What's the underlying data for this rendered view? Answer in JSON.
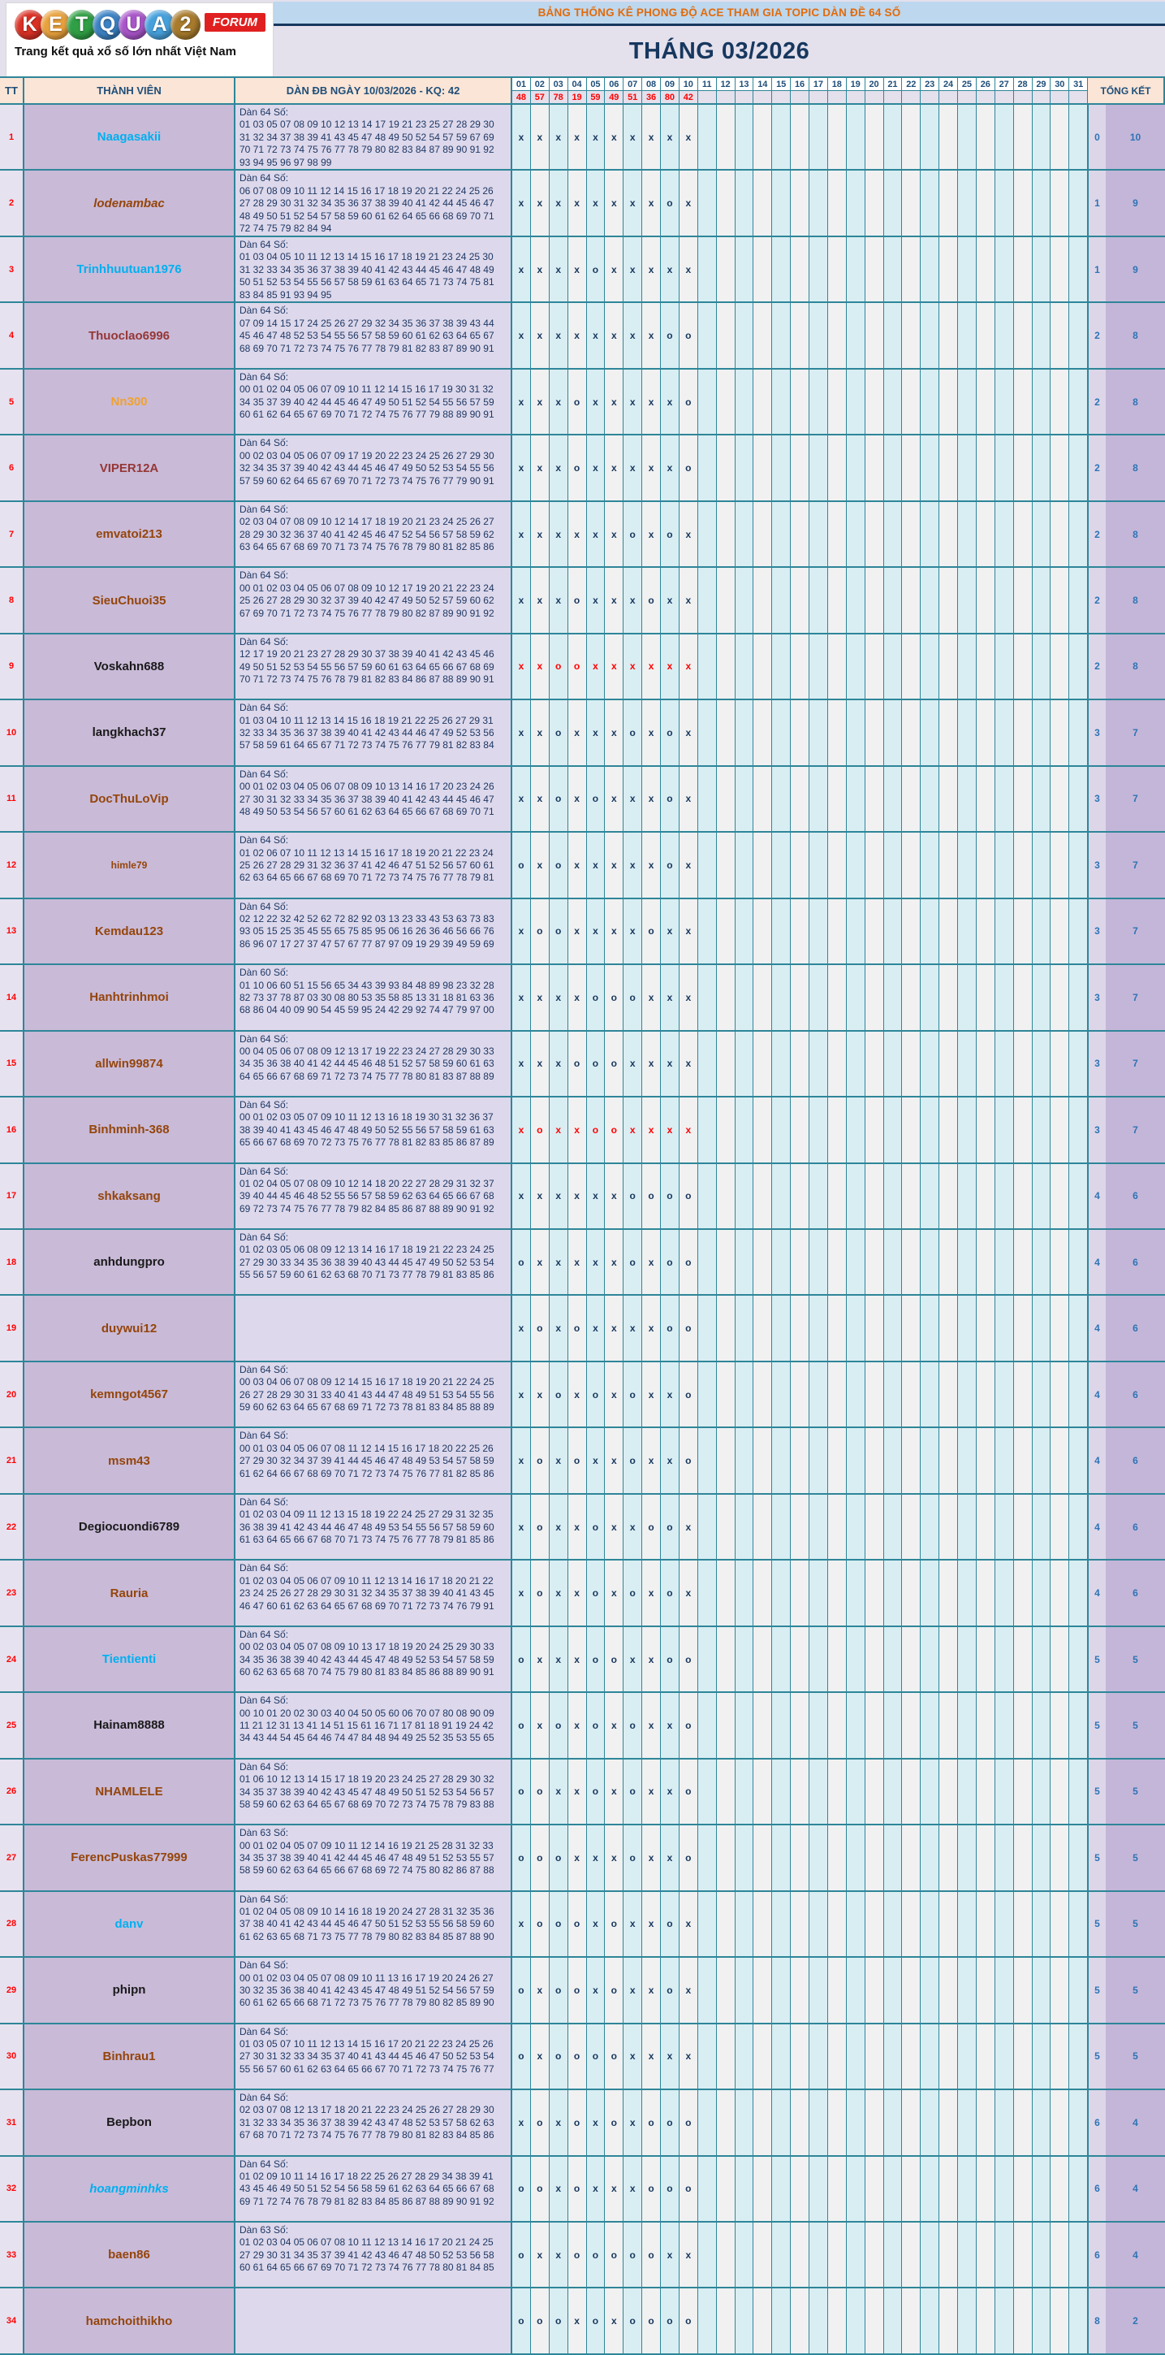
{
  "logo": {
    "balls": [
      {
        "ch": "K",
        "color": "#D93025"
      },
      {
        "ch": "E",
        "color": "#E8A13C"
      },
      {
        "ch": "T",
        "color": "#2F9E44"
      },
      {
        "ch": "Q",
        "color": "#3B82C4"
      },
      {
        "ch": "U",
        "color": "#A855C8"
      },
      {
        "ch": "A",
        "color": "#46A0DC"
      },
      {
        "ch": "2",
        "color": "#A87B2D"
      }
    ],
    "forum": "FORUM",
    "tagline": "Trang kết quả xổ số lớn nhất Việt Nam"
  },
  "banner": {
    "title": "BẢNG THỐNG KÊ PHONG ĐỘ ACE THAM GIA TOPIC DÀN ĐỀ 64 SỐ"
  },
  "month_title": "THÁNG 03/2026",
  "header": {
    "tt": "TT",
    "member": "THÀNH VIÊN",
    "dan": "DÀN ĐB NGÀY 10/03/2026 - KQ: 42",
    "tongket": "TỔNG KẾT",
    "days": [
      "01",
      "02",
      "03",
      "04",
      "05",
      "06",
      "07",
      "08",
      "09",
      "10",
      "11",
      "12",
      "13",
      "14",
      "15",
      "16",
      "17",
      "18",
      "19",
      "20",
      "21",
      "22",
      "23",
      "24",
      "25",
      "26",
      "27",
      "28",
      "29",
      "30",
      "31"
    ],
    "results": [
      "48",
      "57",
      "78",
      "19",
      "59",
      "49",
      "51",
      "36",
      "80",
      "42"
    ]
  },
  "colors": {
    "cyan": "#00B0F0",
    "brown": "#94450B",
    "maroon": "#953735",
    "black": "#1A1A1A",
    "orange": "#F0A22E",
    "border": "#2E8699",
    "mark": "#17375E",
    "mark_red": "#FF0000",
    "total": "#2E74B5"
  },
  "rows": [
    {
      "tt": "1",
      "name": "Naagasakii",
      "color": "cyan",
      "dan_title": "Dàn 64 Số:",
      "lines": [
        "01 03 05 07 08 09 10 12 13 14 17 19 21 23 25 27 28 29 30",
        "31 32 34 37 38 39 41 43 45 47 48 49 50 52 54 57 59 67 69",
        "70 71 72 73 74 75 76 77 78 79 80 82 83 84 87 89 90 91 92",
        "93 94 95 96 97 98 99"
      ],
      "marks": "xxxxxxxxxx",
      "red": false,
      "miss": "0",
      "win": "10"
    },
    {
      "tt": "2",
      "name": "lodenambac",
      "color": "brown",
      "italic": true,
      "dan_title": "Dàn 64 Số:",
      "lines": [
        "06 07 08 09 10 11 12 14 15 16 17 18 19 20 21 22 24 25 26",
        "27 28 29 30 31 32 34 35 36 37 38 39 40 41 42 44 45 46 47",
        "48 49 50 51 52 54 57 58 59 60 61 62 64 65 66 68 69 70 71",
        "72 74 75 79 82 84 94"
      ],
      "marks": "xxxxxxxxox",
      "red": false,
      "miss": "1",
      "win": "9"
    },
    {
      "tt": "3",
      "name": "Trinhhuutuan1976",
      "color": "cyan",
      "dan_title": "Dàn 64 Số:",
      "lines": [
        "01 03 04 05 10 11 12 13 14 15 16 17 18 19 21 23 24 25 30",
        "31 32 33 34 35 36 37 38 39 40 41 42 43 44 45 46 47 48 49",
        "50 51 52 53 54 55 56 57 58 59 61 63 64 65 71 73 74 75 81",
        "83 84 85 91 93 94 95"
      ],
      "marks": "xxxxoxxxxx",
      "red": false,
      "miss": "1",
      "win": "9"
    },
    {
      "tt": "4",
      "name": "Thuoclao6996",
      "color": "maroon",
      "dan_title": "Dàn 64 Số:",
      "lines": [
        "07 09 14 15 17 24 25 26 27 29 32 34 35 36 37 38 39 43 44",
        "45 46 47 48 52 53 54 55 56 57 58 59 60 61 62 63 64 65 67",
        "68 69 70 71 72 73 74 75 76 77 78 79 81 82 83 87 89 90 91"
      ],
      "marks": "xxxxxxxxoo",
      "red": false,
      "miss": "2",
      "win": "8"
    },
    {
      "tt": "5",
      "name": "Nn300",
      "color": "orange",
      "dan_title": "Dàn 64 Số:",
      "lines": [
        "00 01 02 04 05 06 07 09 10 11 12 14 15 16 17 19 30 31 32",
        "34 35 37 39 40 42 44 45 46 47 49 50 51 52 54 55 56 57 59",
        "60 61 62 64 65 67 69 70 71 72 74 75 76 77 79 88 89 90 91"
      ],
      "marks": "xxxoxxxxxo",
      "red": false,
      "miss": "2",
      "win": "8"
    },
    {
      "tt": "6",
      "name": "VIPER12A",
      "color": "maroon",
      "dan_title": "Dàn 64 Số:",
      "lines": [
        "00 02 03 04 05 06 07 09 17 19 20 22 23 24 25 26 27 29 30",
        "32 34 35 37 39 40 42 43 44 45 46 47 49 50 52 53 54 55 56",
        "57 59 60 62 64 65 67 69 70 71 72 73 74 75 76 77 79 90 91"
      ],
      "marks": "xxxoxxxxxo",
      "red": false,
      "miss": "2",
      "win": "8"
    },
    {
      "tt": "7",
      "name": "emvatoi213",
      "color": "brown",
      "dan_title": "Dàn 64 Số:",
      "lines": [
        "02 03 04 07 08 09 10 12 14 17 18 19 20 21 23 24 25 26 27",
        "28 29 30 32 36 37 40 41 42 45 46 47 52 54 56 57 58 59 62",
        "63 64 65 67 68 69 70 71 73 74 75 76 78 79 80 81 82 85 86"
      ],
      "marks": "xxxxxxoxox",
      "red": false,
      "miss": "2",
      "win": "8"
    },
    {
      "tt": "8",
      "name": "SieuChuoi35",
      "color": "brown",
      "dan_title": "Dàn 64 Số:",
      "lines": [
        "00 01 02 03 04 05 06 07 08 09 10 12 17 19 20 21 22 23 24",
        "25 26 27 28 29 30 32 37 39 40 42 47 49 50 52 57 59 60 62",
        "67 69 70 71 72 73 74 75 76 77 78 79 80 82 87 89 90 91 92"
      ],
      "marks": "xxxoxxxoxx",
      "red": false,
      "miss": "2",
      "win": "8"
    },
    {
      "tt": "9",
      "name": "Voskahn688",
      "color": "black",
      "dan_title": "Dàn 64 Số:",
      "lines": [
        "12 17 19 20 21 23 27 28 29 30 37 38 39 40 41 42 43 45 46",
        "49 50 51 52 53 54 55 56 57 59 60 61 63 64 65 66 67 68 69",
        "70 71 72 73 74 75 76 78 79 81 82 83 84 86 87 88 89 90 91"
      ],
      "marks": "xxooxxxxxx",
      "red": true,
      "miss": "2",
      "win": "8"
    },
    {
      "tt": "10",
      "name": "langkhach37",
      "color": "black",
      "dan_title": "Dàn 64 Số:",
      "lines": [
        "01 03 04 10 11 12 13 14 15 16 18 19 21 22 25 26 27 29 31",
        "32 33 34 35 36 37 38 39 40 41 42 43 44 46 47 49 52 53 56",
        "57 58 59 61 64 65 67 71 72 73 74 75 76 77 79 81 82 83 84"
      ],
      "marks": "xxoxxxoxox",
      "red": false,
      "miss": "3",
      "win": "7"
    },
    {
      "tt": "11",
      "name": "DocThuLoVip",
      "color": "brown",
      "dan_title": "Dàn 64 Số:",
      "lines": [
        "00 01 02 03 04 05 06 07 08 09 10 13 14 16 17 20 23 24 26",
        "27 30 31 32 33 34 35 36 37 38 39 40 41 42 43 44 45 46 47",
        "48 49 50 53 54 56 57 60 61 62 63 64 65 66 67 68 69 70 71"
      ],
      "marks": "xxoxoxxxox",
      "red": false,
      "miss": "3",
      "win": "7"
    },
    {
      "tt": "12",
      "name": "himle79",
      "color": "brown",
      "small": true,
      "dan_title": "Dàn 64 Số:",
      "lines": [
        "01 02 06 07 10 11 12 13 14 15 16 17 18 19 20 21 22 23 24",
        "25 26 27 28 29 31 32 36 37 41 42 46 47 51 52 56 57 60 61",
        "62 63 64 65 66 67 68 69 70 71 72 73 74 75 76 77 78 79 81"
      ],
      "marks": "oxoxxxxxox",
      "red": false,
      "miss": "3",
      "win": "7"
    },
    {
      "tt": "13",
      "name": "Kemdau123",
      "color": "brown",
      "dan_title": "Dàn 64 Số:",
      "lines": [
        "02 12 22 32 42 52 62 72 82 92 03 13 23 33 43 53 63 73 83",
        "93 05 15 25 35 45 55 65 75 85 95 06 16 26 36 46 56 66 76",
        "86 96 07 17 27 37 47 57 67 77 87 97 09 19 29 39 49 59 69"
      ],
      "marks": "xooxxxxoxx",
      "red": false,
      "miss": "3",
      "win": "7"
    },
    {
      "tt": "14",
      "name": "Hanhtrinhmoi",
      "color": "brown",
      "dan_title": "Dàn 60 Số:",
      "lines": [
        "01 10 06 60 51 15 56 65 34 43 39 93 84 48 89 98 23 32 28",
        "82 73 37 78 87 03 30 08 80 53 35 58 85 13 31 18 81 63 36",
        "68 86 04 40 09 90 54 45 59 95 24 42 29 92 74 47 79 97 00"
      ],
      "marks": "xxxxoooxxx",
      "red": false,
      "miss": "3",
      "win": "7"
    },
    {
      "tt": "15",
      "name": "allwin99874",
      "color": "brown",
      "dan_title": "Dàn 64 Số:",
      "lines": [
        "00 04 05 06 07 08 09 12 13 17 19 22 23 24 27 28 29 30 33",
        "34 35 36 38 40 41 42 44 45 46 48 51 52 57 58 59 60 61 63",
        "64 65 66 67 68 69 71 72 73 74 75 77 78 80 81 83 87 88 89"
      ],
      "marks": "xxxoooxxxx",
      "red": false,
      "miss": "3",
      "win": "7"
    },
    {
      "tt": "16",
      "name": "Binhminh-368",
      "color": "brown",
      "dan_title": "Dàn 64 Số:",
      "lines": [
        "00 01 02 03 05 07 09 10 11 12 13 16 18 19 30 31 32 36 37",
        "38 39 40 41 43 45 46 47 48 49 50 52 55 56 57 58 59 61 63",
        "65 66 67 68 69 70 72 73 75 76 77 78 81 82 83 85 86 87 89"
      ],
      "marks": "xoxxooxxxx",
      "red": true,
      "miss": "3",
      "win": "7"
    },
    {
      "tt": "17",
      "name": "shkaksang",
      "color": "brown",
      "dan_title": "Dàn 64 Số:",
      "lines": [
        "01 02 04 05 07 08 09 10 12 14 18 20 22 27 28 29 31 32 37",
        "39 40 44 45 46 48 52 55 56 57 58 59 62 63 64 65 66 67 68",
        "69 72 73 74 75 76 77 78 79 82 84 85 86 87 88 89 90 91 92"
      ],
      "marks": "xxxxxxoooo",
      "red": false,
      "miss": "4",
      "win": "6"
    },
    {
      "tt": "18",
      "name": "anhdungpro",
      "color": "black",
      "dan_title": "Dàn 64 Số:",
      "lines": [
        "01 02 03 05 06 08 09 12 13 14 16 17 18 19 21 22 23 24 25",
        "27 29 30 33 34 35 36 38 39 40 43 44 45 47 49 50 52 53 54",
        "55 56 57 59 60 61 62 63 68 70 71 73 77 78 79 81 83 85 86"
      ],
      "marks": "oxxxxxoxoo",
      "red": false,
      "miss": "4",
      "win": "6"
    },
    {
      "tt": "19",
      "name": "duywui12",
      "color": "brown",
      "dan_title": "",
      "lines": [],
      "marks": "xoxoxxxxoo",
      "red": false,
      "miss": "4",
      "win": "6"
    },
    {
      "tt": "20",
      "name": "kemngot4567",
      "color": "brown",
      "dan_title": "Dàn 64 Số:",
      "lines": [
        "00 03 04 06 07 08 09 12 14 15 16 17 18 19 20 21 22 24 25",
        "26 27 28 29 30 31 33 40 41 43 44 47 48 49 51 53 54 55 56",
        "59 60 62 63 64 65 67 68 69 71 72 73 78 81 83 84 85 88 89"
      ],
      "marks": "xxoxoxoxxo",
      "red": false,
      "miss": "4",
      "win": "6"
    },
    {
      "tt": "21",
      "name": "msm43",
      "color": "brown",
      "dan_title": "Dàn 64 Số:",
      "lines": [
        "00 01 03 04 05 06 07 08 11 12 14 15 16 17 18 20 22 25 26",
        "27 29 30 32 34 37 39 41 44 45 46 47 48 49 53 54 57 58 59",
        "61 62 64 66 67 68 69 70 71 72 73 74 75 76 77 81 82 85 86"
      ],
      "marks": "xoxoxxoxxo",
      "red": false,
      "miss": "4",
      "win": "6"
    },
    {
      "tt": "22",
      "name": "Degiocuondi6789",
      "color": "black",
      "dan_title": "Dàn 64 Số:",
      "lines": [
        "01 02 03 04 09 11 12 13 15 18 19 22 24 25 27 29 31 32 35",
        "36 38 39 41 42 43 44 46 47 48 49 53 54 55 56 57 58 59 60",
        "61 63 64 65 66 67 68 70 71 73 74 75 76 77 78 79 81 85 86"
      ],
      "marks": "xoxxoxxoox",
      "red": false,
      "miss": "4",
      "win": "6"
    },
    {
      "tt": "23",
      "name": "Rauria",
      "color": "brown",
      "dan_title": "Dàn 64 Số:",
      "lines": [
        "01 02 03 04 05 06 07 09 10 11 12 13 14 16 17 18 20 21 22",
        "23 24 25 26 27 28 29 30 31 32 34 35 37 38 39 40 41 43 45",
        "46 47 60 61 62 63 64 65 67 68 69 70 71 72 73 74 76 79 91"
      ],
      "marks": "xoxxoxoxox",
      "red": false,
      "miss": "4",
      "win": "6"
    },
    {
      "tt": "24",
      "name": "Tientienti",
      "color": "cyan",
      "dan_title": "Dàn 64 Số:",
      "lines": [
        "00 02 03 04 05 07 08 09 10 13 17 18 19 20 24 25 29 30 33",
        "34 35 36 38 39 40 42 43 44 45 47 48 49 52 53 54 57 58 59",
        "60 62 63 65 68 70 74 75 79 80 81 83 84 85 86 88 89 90 91"
      ],
      "marks": "oxxxooxxoo",
      "red": false,
      "miss": "5",
      "win": "5"
    },
    {
      "tt": "25",
      "name": "Hainam8888",
      "color": "black",
      "dan_title": "Dàn 64 Số:",
      "lines": [
        "00 10 01 20 02 30 03 40 04 50 05 60 06 70 07 80 08 90 09",
        "11 21 12 31 13 41 14 51 15 61 16 71 17 81 18 91 19 24 42",
        "34 43 44 54 45 64 46 74 47 84 48 94 49 25 52 35 53 55 65"
      ],
      "marks": "oxoxoxoxxo",
      "red": false,
      "miss": "5",
      "win": "5"
    },
    {
      "tt": "26",
      "name": "NHAMLELE",
      "color": "brown",
      "dan_title": "Dàn 64 Số:",
      "lines": [
        "01 06 10 12 13 14 15 17 18 19 20 23 24 25 27 28 29 30 32",
        "34 35 37 38 39 40 42 43 45 47 48 49 50 51 52 53 54 56 57",
        "58 59 60 62 63 64 65 67 68 69 70 72 73 74 75 78 79 83 88"
      ],
      "marks": "ooxxoxoxxo",
      "red": false,
      "miss": "5",
      "win": "5"
    },
    {
      "tt": "27",
      "name": "FerencPuskas77999",
      "color": "brown",
      "dan_title": "Dàn 63 Số:",
      "lines": [
        "00 01 02 04 05 07 09 10 11 12 14 16 19 21 25 28 31 32 33",
        "34 35 37 38 39 40 41 42 44 45 46 47 48 49 51 52 53 55 57",
        "58 59 60 62 63 64 65 66 67 68 69 72 74 75 80 82 86 87 88"
      ],
      "marks": "oooxxxoxxo",
      "red": false,
      "miss": "5",
      "win": "5"
    },
    {
      "tt": "28",
      "name": "danv",
      "color": "cyan",
      "dan_title": "Dàn 64 Số:",
      "lines": [
        "01 02 04 05 08 09 10 14 16 18 19 20 24 27 28 31 32 35 36",
        "37 38 40 41 42 43 44 45 46 47 50 51 52 53 55 56 58 59 60",
        "61 62 63 65 68 71 73 75 77 78 79 80 82 83 84 85 87 88 90"
      ],
      "marks": "xoooxoxxox",
      "red": false,
      "miss": "5",
      "win": "5"
    },
    {
      "tt": "29",
      "name": "phipn",
      "color": "black",
      "dan_title": "Dàn 64 Số:",
      "lines": [
        "00 01 02 03 04 05 07 08 09 10 11 13 16 17 19 20 24 26 27",
        "30 32 35 36 38 40 41 42 43 45 47 48 49 51 52 54 56 57 59",
        "60 61 62 65 66 68 71 72 73 75 76 77 78 79 80 82 85 89 90"
      ],
      "marks": "oxooxoxxox",
      "red": false,
      "miss": "5",
      "win": "5"
    },
    {
      "tt": "30",
      "name": "Binhrau1",
      "color": "brown",
      "dan_title": "Dàn 64 Số:",
      "lines": [
        "01 03 05 07 10 11 12 13 14 15 16 17 20 21 22 23 24 25 26",
        "27 30 31 32 33 34 35 37 40 41 43 44 45 46 47 50 52 53 54",
        "55 56 57 60 61 62 63 64 65 66 67 70 71 72 73 74 75 76 77"
      ],
      "marks": "oxooooxxxx",
      "red": false,
      "miss": "5",
      "win": "5"
    },
    {
      "tt": "31",
      "name": "Bepbon",
      "color": "black",
      "dan_title": "Dàn 64 Số:",
      "lines": [
        "02 03 07 08 12 13 17 18 20 21 22 23 24 25 26 27 28 29 30",
        "31 32 33 34 35 36 37 38 39 42 43 47 48 52 53 57 58 62 63",
        "67 68 70 71 72 73 74 75 76 77 78 79 80 81 82 83 84 85 86"
      ],
      "marks": "xoxoxoxooo",
      "red": false,
      "miss": "6",
      "win": "4"
    },
    {
      "tt": "32",
      "name": "hoangminhks",
      "color": "cyan",
      "italic": true,
      "dan_title": "Dàn 64 Số:",
      "lines": [
        "01 02 09 10 11 14 16 17 18 22 25 26 27 28 29 34 38 39 41",
        "43 45 46 49 50 51 52 54 56 58 59 61 62 63 64 65 66 67 68",
        "69 71 72 74 76 78 79 81 82 83 84 85 86 87 88 89 90 91 92"
      ],
      "marks": "ooxoxxxooo",
      "red": false,
      "miss": "6",
      "win": "4"
    },
    {
      "tt": "33",
      "name": "baen86",
      "color": "brown",
      "dan_title": "Dàn 63 Số:",
      "lines": [
        "01 02 03 04 05 06 07 08 10 11 12 13 14 16 17 20 21 24 25",
        "27 29 30 31 34 35 37 39 41 42 43 46 47 48 50 52 53 56 58",
        "60 61 64 65 66 67 69 70 71 72 73 74 76 77 78 80 81 84 85"
      ],
      "marks": "oxxoooooxx",
      "red": false,
      "miss": "6",
      "win": "4"
    },
    {
      "tt": "34",
      "name": "hamchoithikho",
      "color": "brown",
      "dan_title": "",
      "lines": [],
      "marks": "oooxoxoooo",
      "red": false,
      "miss": "8",
      "win": "2"
    }
  ]
}
